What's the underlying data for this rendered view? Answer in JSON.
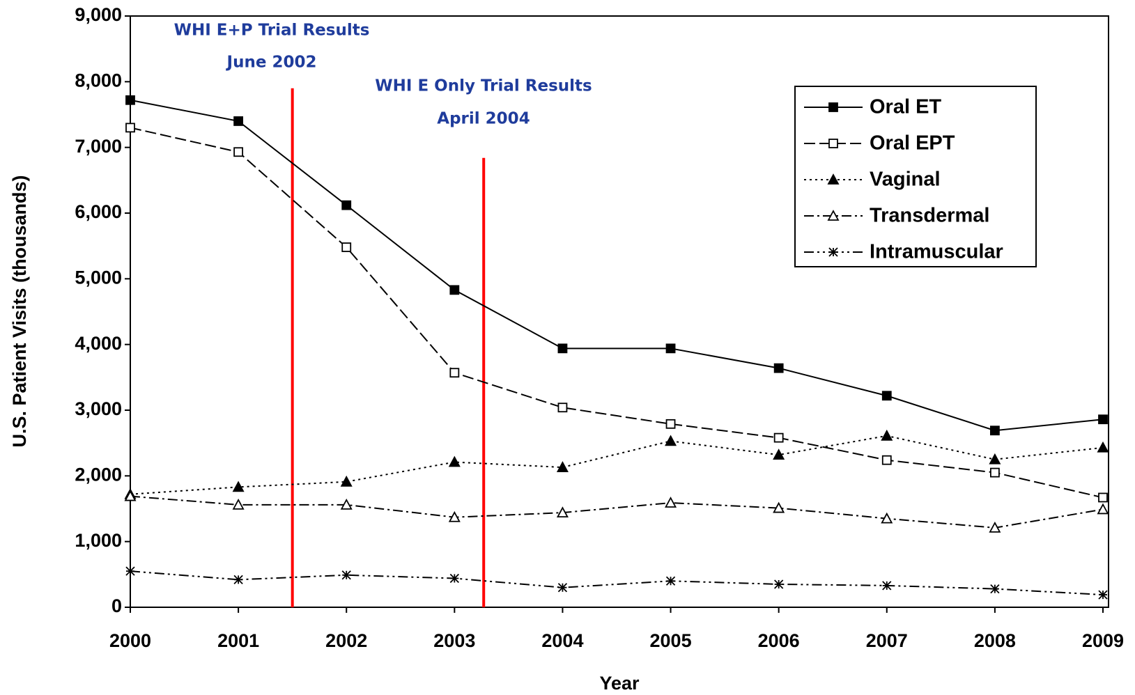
{
  "chart_data": {
    "type": "line",
    "x_label": "Year",
    "y_label": "U.S. Patient Visits (thousands)",
    "x": [
      2000,
      2001,
      2002,
      2003,
      2004,
      2005,
      2006,
      2007,
      2008,
      2009
    ],
    "xlim": [
      2000,
      2009
    ],
    "xticks": [
      2000,
      2001,
      2002,
      2003,
      2004,
      2005,
      2006,
      2007,
      2008,
      2009
    ],
    "ylim": [
      0,
      9000
    ],
    "yticks": [
      0,
      {
        "value": 1000,
        "label": "1,000"
      },
      {
        "value": 2000,
        "label": "2,000"
      },
      {
        "value": 3000,
        "label": "3,000"
      },
      {
        "value": 4000,
        "label": "4,000"
      },
      {
        "value": 5000,
        "label": "5,000"
      },
      {
        "value": 6000,
        "label": "6,000"
      },
      {
        "value": 7000,
        "label": "7,000"
      },
      {
        "value": 8000,
        "label": "8,000"
      },
      {
        "value": 9000,
        "label": "9,000"
      }
    ],
    "grid": false,
    "legend": "upper right",
    "series": [
      {
        "name": "Oral ET",
        "color": "#000000",
        "marker": "square-filled",
        "line_style": "solid",
        "values": [
          7720,
          7400,
          6120,
          4830,
          3940,
          3940,
          3640,
          3220,
          2690,
          2860
        ]
      },
      {
        "name": "Oral EPT",
        "color": "#000000",
        "marker": "square-open",
        "line_style": "dashed",
        "values": [
          7300,
          6930,
          5480,
          3570,
          3040,
          2790,
          2580,
          2240,
          2050,
          1670
        ]
      },
      {
        "name": "Vaginal",
        "color": "#000000",
        "marker": "triangle-filled",
        "line_style": "dotted",
        "values": [
          1720,
          1830,
          1910,
          2210,
          2130,
          2530,
          2320,
          2610,
          2250,
          2430
        ]
      },
      {
        "name": "Transdermal",
        "color": "#000000",
        "marker": "triangle-open",
        "line_style": "dash-dot",
        "values": [
          1690,
          1560,
          1560,
          1370,
          1440,
          1590,
          1510,
          1350,
          1210,
          1490
        ]
      },
      {
        "name": "Intramuscular",
        "color": "#000000",
        "marker": "asterisk",
        "line_style": "dash-dot-dot",
        "values": [
          550,
          420,
          490,
          440,
          300,
          400,
          350,
          330,
          280,
          190
        ]
      }
    ],
    "annotations": [
      {
        "text": [
          "WHI E+P Trial Results",
          "June 2002"
        ],
        "x": 2001.5,
        "y": 7900,
        "color": "#ff0000"
      },
      {
        "text": [
          "WHI E Only Trial Results",
          "April 2004"
        ],
        "x": 2003.27,
        "y": 6840,
        "color": "#ff0000"
      }
    ]
  }
}
